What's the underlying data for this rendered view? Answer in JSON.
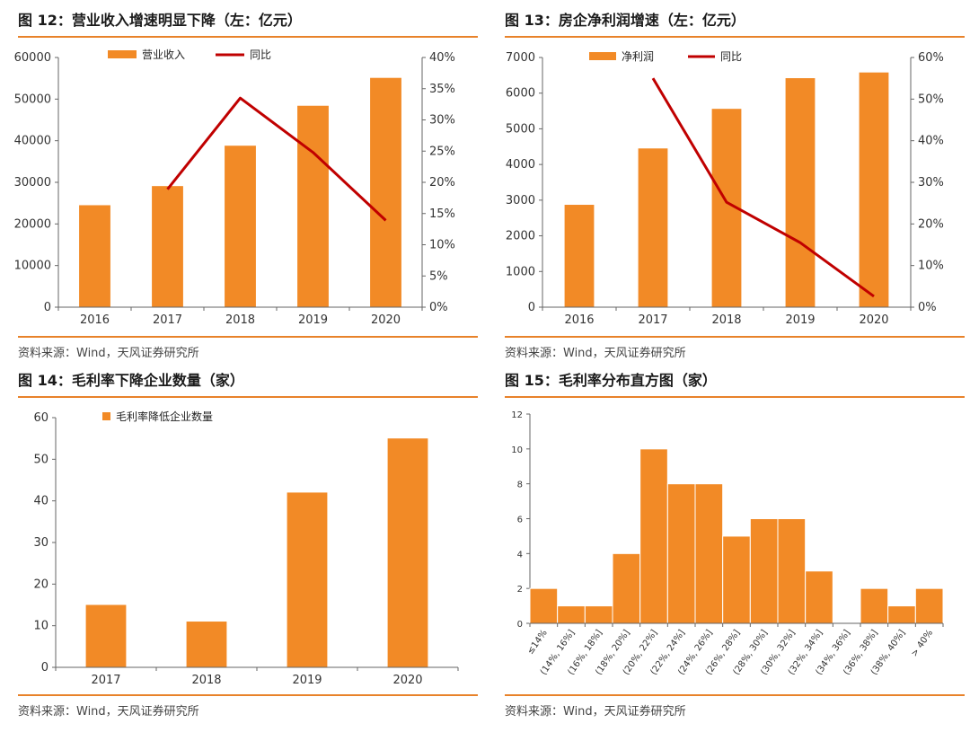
{
  "colors": {
    "bar": "#F28A26",
    "line": "#C00000",
    "rule": "#E8822A",
    "axis": "#666666",
    "text": "#333333"
  },
  "source_text": "资料来源：Wind，天风证券研究所",
  "chart_data": [
    {
      "id": "fig12",
      "type": "bar",
      "title": "图 12：营业收入增速明显下降（左：亿元）",
      "categories": [
        "2016",
        "2017",
        "2018",
        "2019",
        "2020"
      ],
      "series": [
        {
          "name": "营业收入",
          "kind": "bar",
          "axis": "left",
          "values": [
            24500,
            29100,
            38800,
            48400,
            55100
          ]
        },
        {
          "name": "同比",
          "kind": "line",
          "axis": "right",
          "values": [
            null,
            18.9,
            33.5,
            24.8,
            13.9
          ]
        }
      ],
      "ylim_left": [
        0,
        60000
      ],
      "yticks_left": [
        "0",
        "10000",
        "20000",
        "30000",
        "40000",
        "50000",
        "60000"
      ],
      "ylim_right": [
        0,
        40
      ],
      "yticks_right": [
        "0%",
        "5%",
        "10%",
        "15%",
        "20%",
        "25%",
        "30%",
        "35%",
        "40%"
      ],
      "legend": "top"
    },
    {
      "id": "fig13",
      "type": "bar",
      "title": "图 13：房企净利润增速（左：亿元）",
      "categories": [
        "2016",
        "2017",
        "2018",
        "2019",
        "2020"
      ],
      "series": [
        {
          "name": "净利润",
          "kind": "bar",
          "axis": "left",
          "values": [
            2870,
            4450,
            5560,
            6420,
            6580
          ]
        },
        {
          "name": "同比",
          "kind": "line",
          "axis": "right",
          "values": [
            null,
            55.0,
            25.2,
            15.5,
            2.6
          ]
        }
      ],
      "ylim_left": [
        0,
        7000
      ],
      "yticks_left": [
        "0",
        "1000",
        "2000",
        "3000",
        "4000",
        "5000",
        "6000",
        "7000"
      ],
      "ylim_right": [
        0,
        60
      ],
      "yticks_right": [
        "0%",
        "10%",
        "20%",
        "30%",
        "40%",
        "50%",
        "60%"
      ],
      "legend": "top"
    },
    {
      "id": "fig14",
      "type": "bar",
      "title": "图 14：毛利率下降企业数量（家）",
      "categories": [
        "2017",
        "2018",
        "2019",
        "2020"
      ],
      "series": [
        {
          "name": "毛利率降低企业数量",
          "kind": "bar",
          "axis": "left",
          "values": [
            15,
            11,
            42,
            55
          ]
        }
      ],
      "ylim_left": [
        0,
        60
      ],
      "yticks_left": [
        "0",
        "10",
        "20",
        "30",
        "40",
        "50",
        "60"
      ],
      "legend": "top-left"
    },
    {
      "id": "fig15",
      "type": "bar",
      "title": "图 15：毛利率分布直方图（家）",
      "categories": [
        "≤14%",
        "(14%, 16%]",
        "(16%, 18%]",
        "(18%, 20%]",
        "(20%, 22%]",
        "(22%, 24%]",
        "(24%, 26%]",
        "(26%, 28%]",
        "(28%, 30%]",
        "(30%, 32%]",
        "(32%, 34%]",
        "(34%, 36%]",
        "(36%, 38%]",
        "(38%, 40%]",
        "> 40%"
      ],
      "series": [
        {
          "name": "",
          "kind": "bar",
          "axis": "left",
          "values": [
            2,
            1,
            1,
            4,
            10,
            8,
            8,
            5,
            6,
            6,
            3,
            0,
            2,
            1,
            2
          ]
        }
      ],
      "ylim_left": [
        0,
        12
      ],
      "yticks_left": [
        "0",
        "2",
        "4",
        "6",
        "8",
        "10",
        "12"
      ],
      "legend": "none"
    }
  ]
}
